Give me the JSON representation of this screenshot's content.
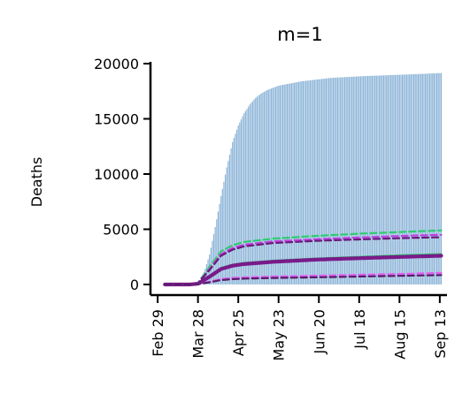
{
  "chart_data": {
    "type": "bar",
    "title": "m=1",
    "xlabel": "",
    "ylabel": "Deaths",
    "ylim": [
      -600,
      20000
    ],
    "xlim_days": [
      -5,
      201
    ],
    "x_tick_labels": [
      "Feb 29",
      "Mar 28",
      "Apr 25",
      "May 23",
      "Jun 20",
      "Jul 18",
      "Aug 15",
      "Sep 13"
    ],
    "x_tick_days": [
      0,
      28,
      56,
      84,
      112,
      140,
      168,
      196
    ],
    "y_ticks": [
      0,
      5000,
      10000,
      15000,
      20000
    ],
    "y_tick_labels": [
      "0",
      "5000",
      "10000",
      "15000",
      "20000"
    ],
    "grid": false,
    "legend": "none",
    "bar_series": {
      "description_color": "#8cb4d8",
      "start_day": 28,
      "end_day": 197,
      "points": [
        [
          28,
          0
        ],
        [
          30,
          400
        ],
        [
          33,
          1400
        ],
        [
          36,
          2700
        ],
        [
          40,
          5200
        ],
        [
          44,
          8000
        ],
        [
          48,
          10600
        ],
        [
          52,
          12900
        ],
        [
          56,
          14400
        ],
        [
          60,
          15500
        ],
        [
          64,
          16300
        ],
        [
          68,
          16900
        ],
        [
          72,
          17300
        ],
        [
          76,
          17600
        ],
        [
          84,
          18000
        ],
        [
          100,
          18400
        ],
        [
          120,
          18700
        ],
        [
          140,
          18850
        ],
        [
          160,
          18950
        ],
        [
          180,
          19050
        ],
        [
          197,
          19150
        ]
      ]
    },
    "series": [
      {
        "color": "#2ecc71",
        "style": "dashed",
        "width": 2.2,
        "points": [
          [
            5,
            0
          ],
          [
            22,
            0
          ],
          [
            28,
            150
          ],
          [
            36,
            1600
          ],
          [
            44,
            3000
          ],
          [
            52,
            3550
          ],
          [
            60,
            3850
          ],
          [
            80,
            4150
          ],
          [
            110,
            4400
          ],
          [
            140,
            4600
          ],
          [
            170,
            4760
          ],
          [
            197,
            4900
          ]
        ]
      },
      {
        "color": "#c040e0",
        "style": "dashed",
        "width": 2.2,
        "points": [
          [
            5,
            0
          ],
          [
            22,
            0
          ],
          [
            28,
            130
          ],
          [
            36,
            1400
          ],
          [
            44,
            2750
          ],
          [
            52,
            3300
          ],
          [
            60,
            3600
          ],
          [
            80,
            3900
          ],
          [
            110,
            4100
          ],
          [
            140,
            4250
          ],
          [
            170,
            4400
          ],
          [
            197,
            4500
          ]
        ]
      },
      {
        "color": "#6a1a7a",
        "style": "dashed",
        "width": 2.2,
        "points": [
          [
            5,
            0
          ],
          [
            22,
            0
          ],
          [
            28,
            120
          ],
          [
            36,
            1300
          ],
          [
            44,
            2600
          ],
          [
            52,
            3150
          ],
          [
            60,
            3450
          ],
          [
            80,
            3750
          ],
          [
            110,
            3950
          ],
          [
            140,
            4080
          ],
          [
            170,
            4200
          ],
          [
            197,
            4280
          ]
        ]
      },
      {
        "color": "#2ecc71",
        "style": "solid",
        "width": 2.2,
        "points": [
          [
            5,
            0
          ],
          [
            22,
            0
          ],
          [
            28,
            80
          ],
          [
            36,
            800
          ],
          [
            44,
            1500
          ],
          [
            52,
            1800
          ],
          [
            60,
            1950
          ],
          [
            80,
            2150
          ],
          [
            110,
            2350
          ],
          [
            140,
            2500
          ],
          [
            170,
            2650
          ],
          [
            197,
            2750
          ]
        ]
      },
      {
        "color": "#7a1a8a",
        "style": "solid",
        "width": 4.2,
        "points": [
          [
            5,
            0
          ],
          [
            22,
            0
          ],
          [
            28,
            70
          ],
          [
            36,
            700
          ],
          [
            44,
            1400
          ],
          [
            52,
            1700
          ],
          [
            60,
            1850
          ],
          [
            80,
            2050
          ],
          [
            110,
            2250
          ],
          [
            140,
            2380
          ],
          [
            170,
            2500
          ],
          [
            197,
            2600
          ]
        ]
      },
      {
        "color": "#e060f0",
        "style": "dashed",
        "width": 2.2,
        "points": [
          [
            5,
            0
          ],
          [
            22,
            0
          ],
          [
            28,
            30
          ],
          [
            36,
            250
          ],
          [
            44,
            500
          ],
          [
            52,
            600
          ],
          [
            60,
            650
          ],
          [
            80,
            720
          ],
          [
            110,
            800
          ],
          [
            140,
            880
          ],
          [
            170,
            960
          ],
          [
            197,
            1050
          ]
        ]
      },
      {
        "color": "#5a1a6a",
        "style": "dashed",
        "width": 2.2,
        "points": [
          [
            5,
            0
          ],
          [
            22,
            0
          ],
          [
            28,
            25
          ],
          [
            36,
            200
          ],
          [
            44,
            400
          ],
          [
            52,
            480
          ],
          [
            60,
            530
          ],
          [
            80,
            590
          ],
          [
            110,
            650
          ],
          [
            140,
            720
          ],
          [
            170,
            790
          ],
          [
            197,
            850
          ]
        ]
      }
    ]
  }
}
